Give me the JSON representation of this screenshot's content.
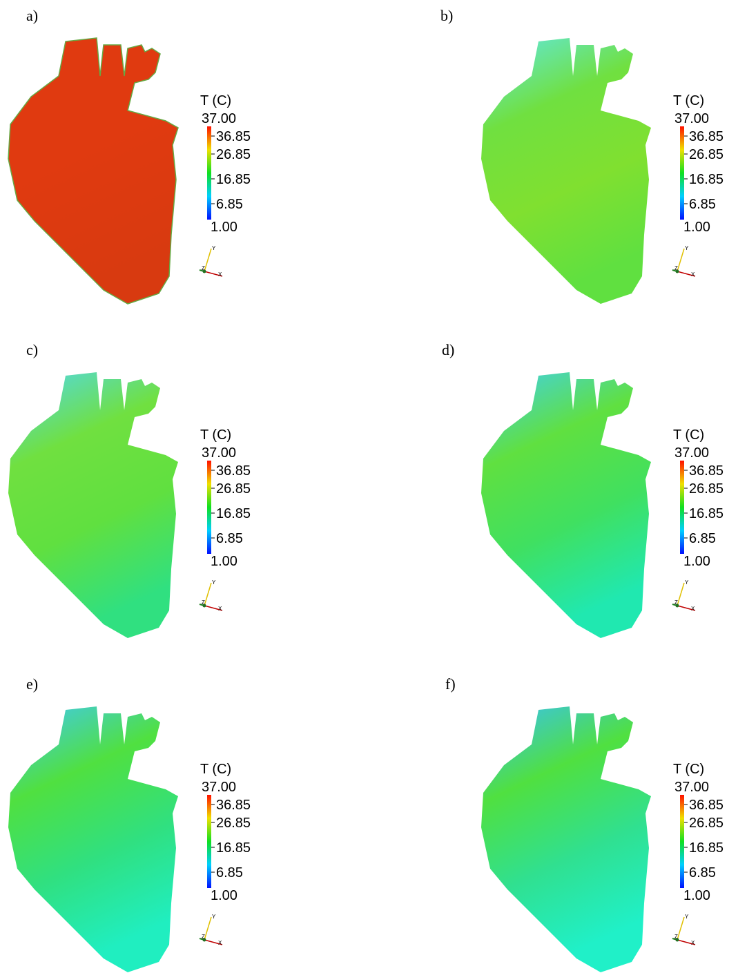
{
  "panels": [
    {
      "label": "a)",
      "legend": {
        "title": "T (C)",
        "max": "37.00",
        "ticks": [
          "36.85",
          "26.85",
          "16.85",
          "6.85"
        ],
        "min": "1.00"
      },
      "axes": {
        "y": "Y",
        "z": "Z",
        "x": "X"
      }
    },
    {
      "label": "b)",
      "legend": {
        "title": "T (C)",
        "max": "37.00",
        "ticks": [
          "36.85",
          "26.85",
          "16.85",
          "6.85"
        ],
        "min": "1.00"
      },
      "axes": {
        "y": "Y",
        "z": "Z",
        "x": "X"
      }
    },
    {
      "label": "c)",
      "legend": {
        "title": "T (C)",
        "max": "37.00",
        "ticks": [
          "36.85",
          "26.85",
          "16.85",
          "6.85"
        ],
        "min": "1.00"
      },
      "axes": {
        "y": "Y",
        "z": "Z",
        "x": "X"
      }
    },
    {
      "label": "d)",
      "legend": {
        "title": "T (C)",
        "max": "37.00",
        "ticks": [
          "36.85",
          "26.85",
          "16.85",
          "6.85"
        ],
        "min": "1.00"
      },
      "axes": {
        "y": "Y",
        "z": "Z",
        "x": "X"
      }
    },
    {
      "label": "e)",
      "legend": {
        "title": "T (C)",
        "max": "37.00",
        "ticks": [
          "36.85",
          "26.85",
          "16.85",
          "6.85"
        ],
        "min": "1.00"
      },
      "axes": {
        "y": "Y",
        "z": "Z",
        "x": "X"
      }
    },
    {
      "label": "f)",
      "legend": {
        "title": "T (C)",
        "max": "37.00",
        "ticks": [
          "36.85",
          "26.85",
          "16.85",
          "6.85"
        ],
        "min": "1.00"
      },
      "axes": {
        "y": "Y",
        "z": "Z",
        "x": "X"
      }
    }
  ]
}
